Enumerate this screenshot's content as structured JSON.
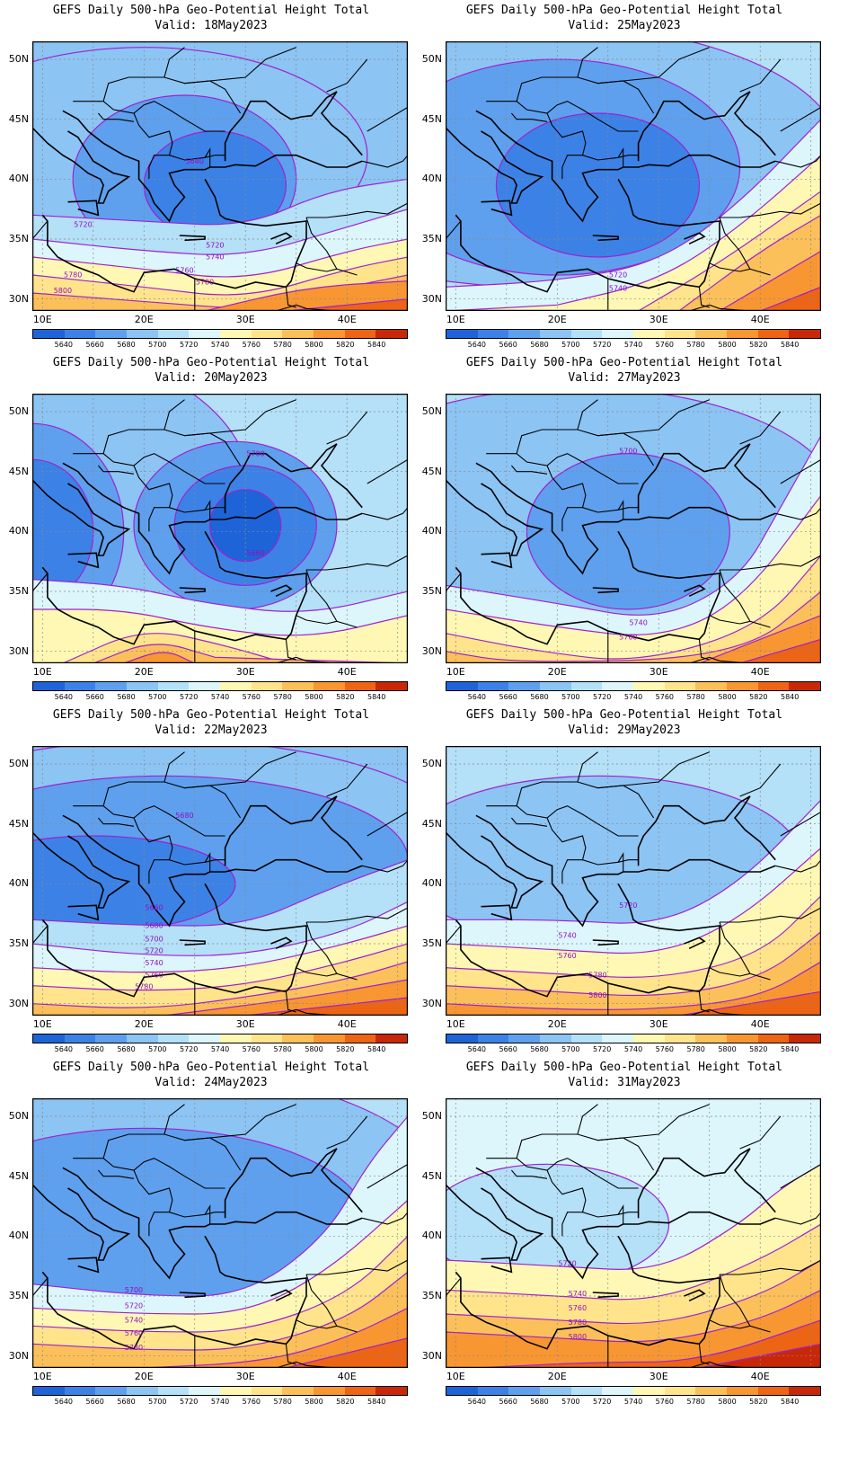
{
  "legend": {
    "levels": [
      "5640",
      "5660",
      "5680",
      "5700",
      "5720",
      "5740",
      "5760",
      "5780",
      "5800",
      "5820",
      "5840"
    ],
    "colors": [
      "#1e64d8",
      "#3c82e6",
      "#5ea0ee",
      "#8cc4f4",
      "#b4e0f8",
      "#dcf6fc",
      "#fff8b4",
      "#ffe48c",
      "#fcc05a",
      "#f89632",
      "#ec6414",
      "#c82808"
    ]
  },
  "axes": {
    "lat_labels": [
      "50N",
      "45N",
      "40N",
      "35N",
      "30N"
    ],
    "lon_labels": [
      "10E",
      "20E",
      "30E",
      "40E"
    ]
  },
  "panels": [
    {
      "title": "GEFS Daily 500-hPa Geo-Potential Height Total",
      "valid": "Valid:  18May2023",
      "contour_labels": [
        "5640",
        "5720",
        "5720",
        "5740",
        "5760",
        "5780",
        "5780",
        "5800"
      ]
    },
    {
      "title": "GEFS Daily 500-hPa Geo-Potential Height Total",
      "valid": "Valid:  25May2023",
      "contour_labels": [
        "5720",
        "5740"
      ]
    },
    {
      "title": "GEFS Daily 500-hPa Geo-Potential Height Total",
      "valid": "Valid:  20May2023",
      "contour_labels": [
        "5700",
        "5660"
      ]
    },
    {
      "title": "GEFS Daily 500-hPa Geo-Potential Height Total",
      "valid": "Valid:  27May2023",
      "contour_labels": [
        "5700",
        "5740",
        "5760"
      ]
    },
    {
      "title": "GEFS Daily 500-hPa Geo-Potential Height Total",
      "valid": "Valid:  22May2023",
      "contour_labels": [
        "5680",
        "5660",
        "5680",
        "5700",
        "5720",
        "5740",
        "5760",
        "5780"
      ]
    },
    {
      "title": "GEFS Daily 500-hPa Geo-Potential Height Total",
      "valid": "Valid:  29May2023",
      "contour_labels": [
        "5720",
        "5740",
        "5760",
        "5780",
        "5800"
      ]
    },
    {
      "title": "GEFS Daily 500-hPa Geo-Potential Height Total",
      "valid": "Valid:  24May2023",
      "contour_labels": [
        "5700",
        "5720",
        "5740",
        "5760",
        "5780"
      ]
    },
    {
      "title": "GEFS Daily 500-hPa Geo-Potential Height Total",
      "valid": "Valid:  31May2023",
      "contour_labels": [
        "5720",
        "5740",
        "5760",
        "5780",
        "5800"
      ]
    }
  ]
}
